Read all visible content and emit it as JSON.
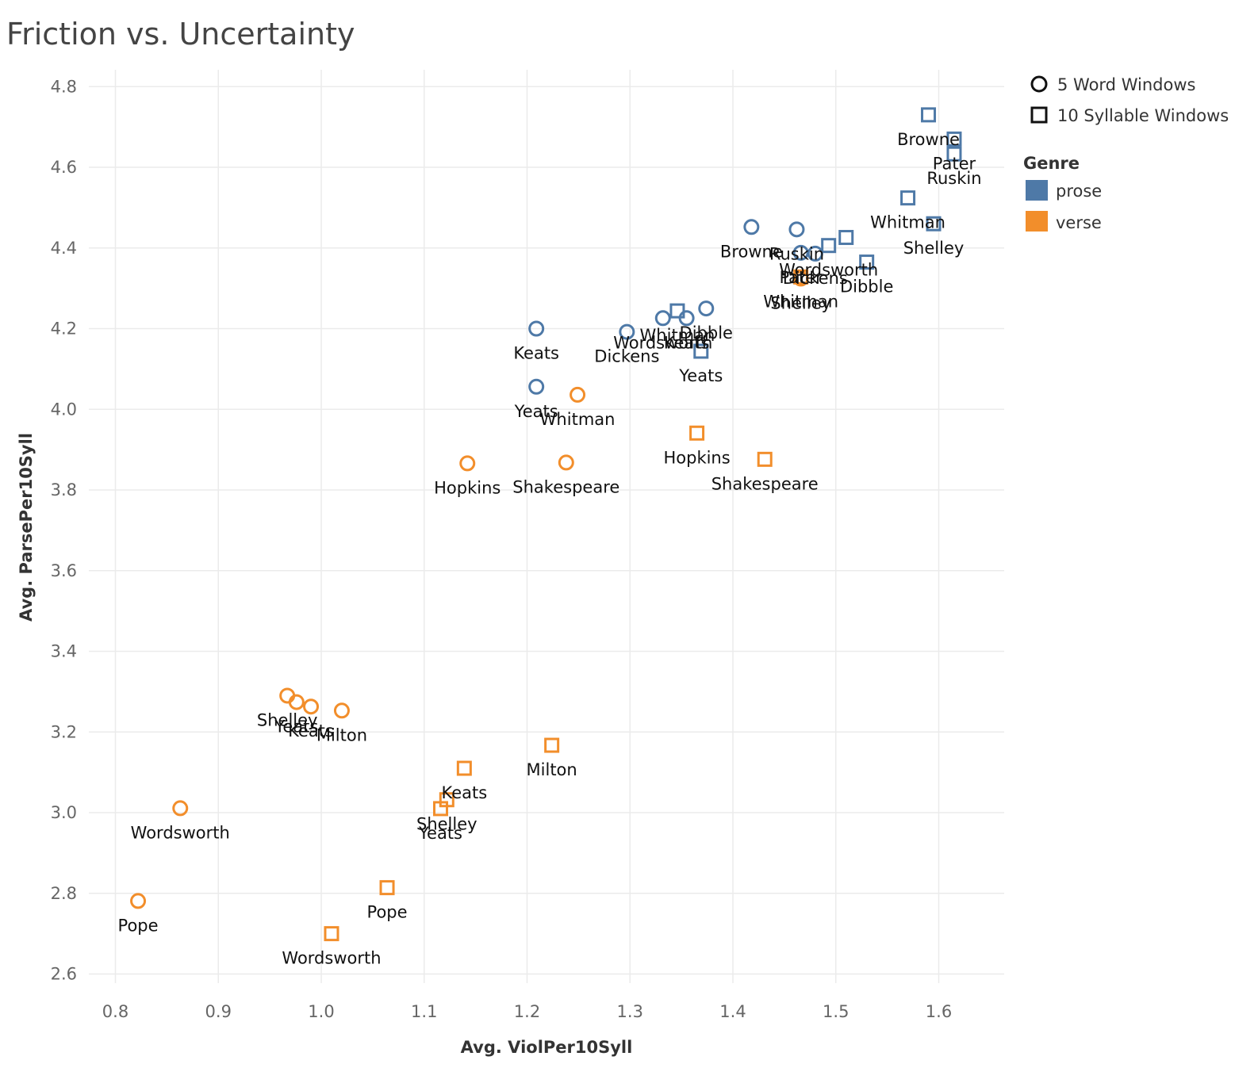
{
  "chart_data": {
    "type": "scatter",
    "title": "Friction vs. Uncertainty",
    "xlabel": "Avg. ViolPer10Syll",
    "ylabel": "Avg. ParsePer10Syll",
    "xlim": [
      0.77,
      1.66
    ],
    "ylim": [
      2.58,
      4.87
    ],
    "xticks": [
      "0.8",
      "0.9",
      "1.0",
      "1.1",
      "1.2",
      "1.3",
      "1.4",
      "1.5",
      "1.6"
    ],
    "yticks": [
      "2.6",
      "2.8",
      "3.0",
      "3.2",
      "3.4",
      "3.6",
      "3.8",
      "4.0",
      "4.2",
      "4.4",
      "4.6",
      "4.8"
    ],
    "grid": true,
    "legend_placement": "right",
    "shape_legend": [
      {
        "shape": "circle",
        "label": "5 Word Windows"
      },
      {
        "shape": "square",
        "label": "10 Syllable Windows"
      }
    ],
    "color_legend": {
      "title": "Genre",
      "items": [
        {
          "name": "prose",
          "color": "#4e79a7"
        },
        {
          "name": "verse",
          "color": "#f28e2b"
        }
      ]
    },
    "points": [
      {
        "x": 1.209,
        "y": 4.2,
        "genre": "prose",
        "shape": "circle",
        "label": "Keats"
      },
      {
        "x": 1.209,
        "y": 4.056,
        "genre": "prose",
        "shape": "circle",
        "label": "Yeats"
      },
      {
        "x": 1.297,
        "y": 4.192,
        "genre": "prose",
        "shape": "circle",
        "label": "Dickens"
      },
      {
        "x": 1.332,
        "y": 4.226,
        "genre": "prose",
        "shape": "circle",
        "label": "Wordsworth"
      },
      {
        "x": 1.355,
        "y": 4.226,
        "genre": "prose",
        "shape": "circle",
        "label": "Keats"
      },
      {
        "x": 1.374,
        "y": 4.25,
        "genre": "prose",
        "shape": "circle",
        "label": "Dibble"
      },
      {
        "x": 1.418,
        "y": 4.452,
        "genre": "prose",
        "shape": "circle",
        "label": "Browne"
      },
      {
        "x": 1.462,
        "y": 4.446,
        "genre": "prose",
        "shape": "circle",
        "label": "Ruskin"
      },
      {
        "x": 1.466,
        "y": 4.388,
        "genre": "prose",
        "shape": "circle",
        "label": "Pater"
      },
      {
        "x": 1.48,
        "y": 4.386,
        "genre": "prose",
        "shape": "circle",
        "label": "Dickens"
      },
      {
        "x": 1.346,
        "y": 4.244,
        "genre": "prose",
        "shape": "square",
        "label": "Whitman"
      },
      {
        "x": 1.369,
        "y": 4.144,
        "genre": "prose",
        "shape": "square",
        "label": "Yeats"
      },
      {
        "x": 1.493,
        "y": 4.406,
        "genre": "prose",
        "shape": "square",
        "label": "Wordsworth"
      },
      {
        "x": 1.51,
        "y": 4.426,
        "genre": "prose",
        "shape": "square",
        "label": ""
      },
      {
        "x": 1.53,
        "y": 4.365,
        "genre": "prose",
        "shape": "square",
        "label": "Dibble"
      },
      {
        "x": 1.57,
        "y": 4.524,
        "genre": "prose",
        "shape": "square",
        "label": "Whitman"
      },
      {
        "x": 1.595,
        "y": 4.46,
        "genre": "prose",
        "shape": "square",
        "label": "Shelley"
      },
      {
        "x": 1.59,
        "y": 4.73,
        "genre": "prose",
        "shape": "square",
        "label": "Browne"
      },
      {
        "x": 1.615,
        "y": 4.67,
        "genre": "prose",
        "shape": "square",
        "label": "Pater"
      },
      {
        "x": 1.615,
        "y": 4.633,
        "genre": "prose",
        "shape": "square",
        "label": "Ruskin"
      },
      {
        "x": 1.142,
        "y": 3.866,
        "genre": "verse",
        "shape": "circle",
        "label": "Hopkins"
      },
      {
        "x": 1.238,
        "y": 3.868,
        "genre": "verse",
        "shape": "circle",
        "label": "Shakespeare"
      },
      {
        "x": 1.249,
        "y": 4.036,
        "genre": "verse",
        "shape": "circle",
        "label": "Whitman"
      },
      {
        "x": 1.466,
        "y": 4.324,
        "genre": "verse",
        "shape": "circle",
        "label": "Shelley"
      },
      {
        "x": 0.967,
        "y": 3.29,
        "genre": "verse",
        "shape": "circle",
        "label": "Shelley"
      },
      {
        "x": 0.976,
        "y": 3.274,
        "genre": "verse",
        "shape": "circle",
        "label": "Yeats"
      },
      {
        "x": 0.99,
        "y": 3.263,
        "genre": "verse",
        "shape": "circle",
        "label": "Keats"
      },
      {
        "x": 1.02,
        "y": 3.253,
        "genre": "verse",
        "shape": "circle",
        "label": "Milton"
      },
      {
        "x": 0.863,
        "y": 3.011,
        "genre": "verse",
        "shape": "circle",
        "label": "Wordsworth"
      },
      {
        "x": 0.822,
        "y": 2.781,
        "genre": "verse",
        "shape": "circle",
        "label": "Pope"
      },
      {
        "x": 1.365,
        "y": 3.941,
        "genre": "verse",
        "shape": "square",
        "label": "Hopkins"
      },
      {
        "x": 1.431,
        "y": 3.876,
        "genre": "verse",
        "shape": "square",
        "label": "Shakespeare"
      },
      {
        "x": 1.466,
        "y": 4.328,
        "genre": "verse",
        "shape": "square",
        "label": "Whitman"
      },
      {
        "x": 1.224,
        "y": 3.167,
        "genre": "verse",
        "shape": "square",
        "label": "Milton"
      },
      {
        "x": 1.139,
        "y": 3.11,
        "genre": "verse",
        "shape": "square",
        "label": "Keats"
      },
      {
        "x": 1.122,
        "y": 3.032,
        "genre": "verse",
        "shape": "square",
        "label": "Shelley"
      },
      {
        "x": 1.116,
        "y": 3.01,
        "genre": "verse",
        "shape": "square",
        "label": "Yeats"
      },
      {
        "x": 1.064,
        "y": 2.814,
        "genre": "verse",
        "shape": "square",
        "label": "Pope"
      },
      {
        "x": 1.01,
        "y": 2.7,
        "genre": "verse",
        "shape": "square",
        "label": "Wordsworth"
      }
    ]
  }
}
